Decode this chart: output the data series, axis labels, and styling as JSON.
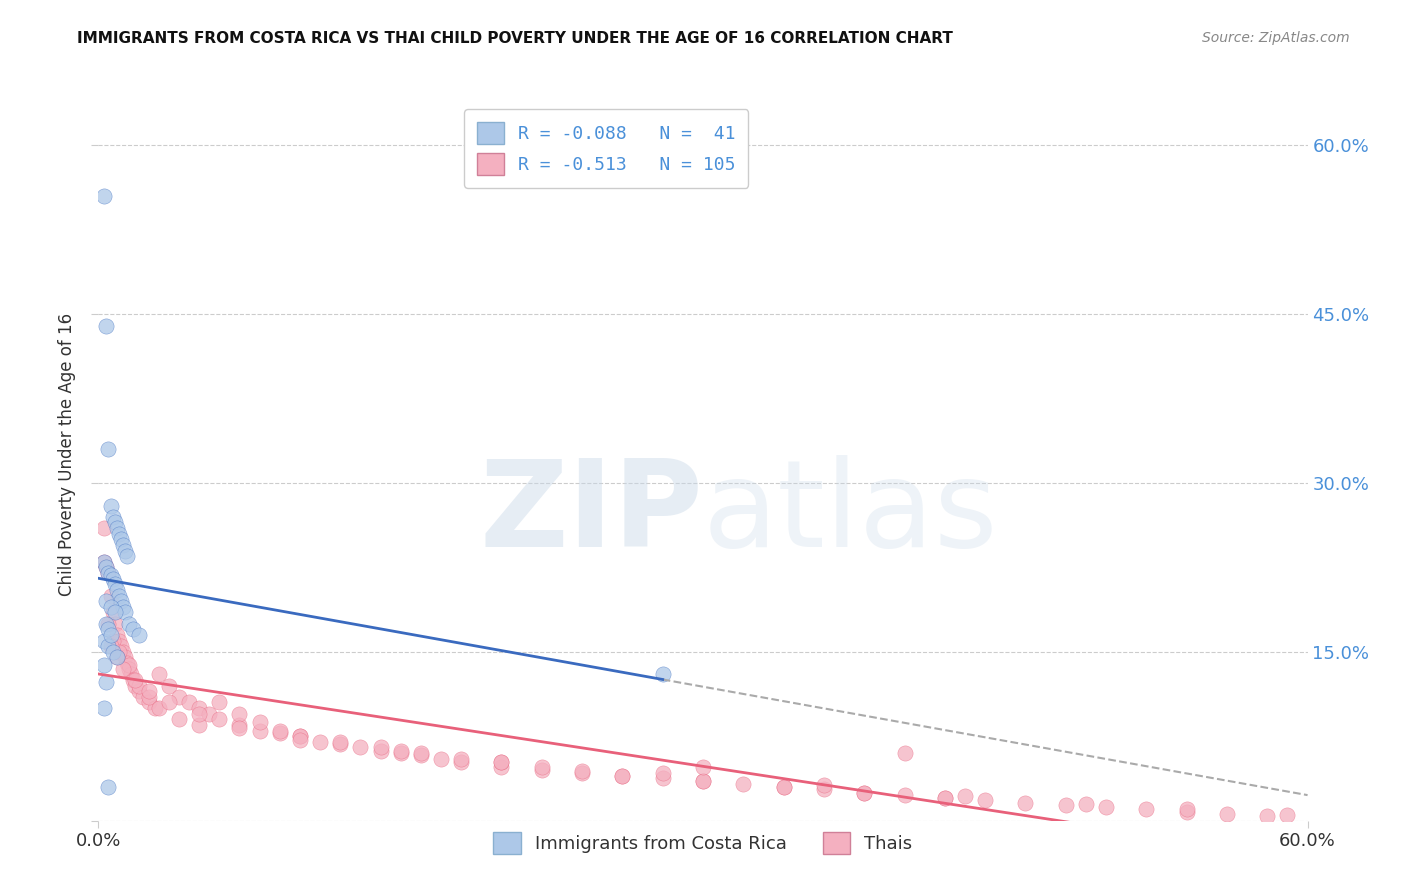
{
  "title": "IMMIGRANTS FROM COSTA RICA VS THAI CHILD POVERTY UNDER THE AGE OF 16 CORRELATION CHART",
  "source": "Source: ZipAtlas.com",
  "ylabel": "Child Poverty Under the Age of 16",
  "xlim": [
    0.0,
    0.6
  ],
  "ylim": [
    0.0,
    0.65
  ],
  "yticks": [
    0.0,
    0.15,
    0.3,
    0.45,
    0.6
  ],
  "xticks": [
    0.0,
    0.6
  ],
  "ytick_labels_right": [
    "",
    "15.0%",
    "30.0%",
    "45.0%",
    "60.0%"
  ],
  "blue_R": -0.088,
  "blue_N": 41,
  "pink_R": -0.513,
  "pink_N": 105,
  "blue_color": "#adc8e8",
  "pink_color": "#f4b0c0",
  "blue_line_color": "#3a6abf",
  "pink_line_color": "#e8607a",
  "dash_line_color": "#aaaaaa",
  "legend_label_blue": "Immigrants from Costa Rica",
  "legend_label_pink": "Thais",
  "blue_scatter_x": [
    0.003,
    0.004,
    0.005,
    0.006,
    0.007,
    0.008,
    0.009,
    0.01,
    0.011,
    0.012,
    0.013,
    0.014,
    0.003,
    0.004,
    0.005,
    0.006,
    0.007,
    0.008,
    0.009,
    0.01,
    0.011,
    0.012,
    0.013,
    0.015,
    0.017,
    0.02,
    0.003,
    0.005,
    0.007,
    0.009,
    0.004,
    0.006,
    0.008,
    0.28,
    0.004,
    0.005,
    0.006,
    0.003,
    0.004,
    0.003,
    0.005
  ],
  "blue_scatter_y": [
    0.555,
    0.44,
    0.33,
    0.28,
    0.27,
    0.265,
    0.26,
    0.255,
    0.25,
    0.245,
    0.24,
    0.235,
    0.23,
    0.225,
    0.22,
    0.218,
    0.215,
    0.21,
    0.205,
    0.2,
    0.195,
    0.19,
    0.185,
    0.175,
    0.17,
    0.165,
    0.16,
    0.155,
    0.15,
    0.145,
    0.195,
    0.19,
    0.185,
    0.13,
    0.175,
    0.17,
    0.165,
    0.138,
    0.123,
    0.1,
    0.03
  ],
  "pink_scatter_x": [
    0.003,
    0.004,
    0.005,
    0.006,
    0.007,
    0.008,
    0.009,
    0.01,
    0.011,
    0.012,
    0.013,
    0.014,
    0.015,
    0.016,
    0.017,
    0.018,
    0.02,
    0.022,
    0.025,
    0.028,
    0.03,
    0.035,
    0.04,
    0.045,
    0.05,
    0.055,
    0.06,
    0.07,
    0.08,
    0.09,
    0.1,
    0.11,
    0.12,
    0.13,
    0.14,
    0.15,
    0.16,
    0.17,
    0.18,
    0.2,
    0.22,
    0.24,
    0.26,
    0.28,
    0.3,
    0.32,
    0.34,
    0.36,
    0.38,
    0.4,
    0.42,
    0.44,
    0.46,
    0.48,
    0.5,
    0.52,
    0.54,
    0.56,
    0.58,
    0.003,
    0.005,
    0.007,
    0.01,
    0.015,
    0.02,
    0.025,
    0.03,
    0.04,
    0.05,
    0.06,
    0.07,
    0.08,
    0.09,
    0.1,
    0.12,
    0.14,
    0.16,
    0.18,
    0.2,
    0.22,
    0.24,
    0.26,
    0.3,
    0.34,
    0.38,
    0.42,
    0.006,
    0.009,
    0.012,
    0.018,
    0.025,
    0.035,
    0.05,
    0.07,
    0.1,
    0.15,
    0.2,
    0.28,
    0.36,
    0.43,
    0.49,
    0.54,
    0.59,
    0.4,
    0.3
  ],
  "pink_scatter_y": [
    0.23,
    0.225,
    0.22,
    0.2,
    0.185,
    0.175,
    0.165,
    0.16,
    0.155,
    0.15,
    0.145,
    0.14,
    0.135,
    0.13,
    0.125,
    0.12,
    0.115,
    0.11,
    0.105,
    0.1,
    0.13,
    0.12,
    0.11,
    0.105,
    0.1,
    0.095,
    0.09,
    0.085,
    0.08,
    0.078,
    0.075,
    0.07,
    0.068,
    0.065,
    0.062,
    0.06,
    0.058,
    0.055,
    0.052,
    0.048,
    0.045,
    0.042,
    0.04,
    0.038,
    0.035,
    0.033,
    0.03,
    0.028,
    0.025,
    0.023,
    0.02,
    0.018,
    0.016,
    0.014,
    0.012,
    0.01,
    0.008,
    0.006,
    0.004,
    0.26,
    0.175,
    0.16,
    0.15,
    0.138,
    0.12,
    0.11,
    0.1,
    0.09,
    0.085,
    0.105,
    0.095,
    0.088,
    0.08,
    0.075,
    0.07,
    0.065,
    0.06,
    0.055,
    0.052,
    0.048,
    0.044,
    0.04,
    0.035,
    0.03,
    0.025,
    0.02,
    0.155,
    0.145,
    0.135,
    0.125,
    0.115,
    0.105,
    0.095,
    0.082,
    0.072,
    0.062,
    0.052,
    0.042,
    0.032,
    0.022,
    0.015,
    0.01,
    0.005,
    0.06,
    0.048
  ]
}
